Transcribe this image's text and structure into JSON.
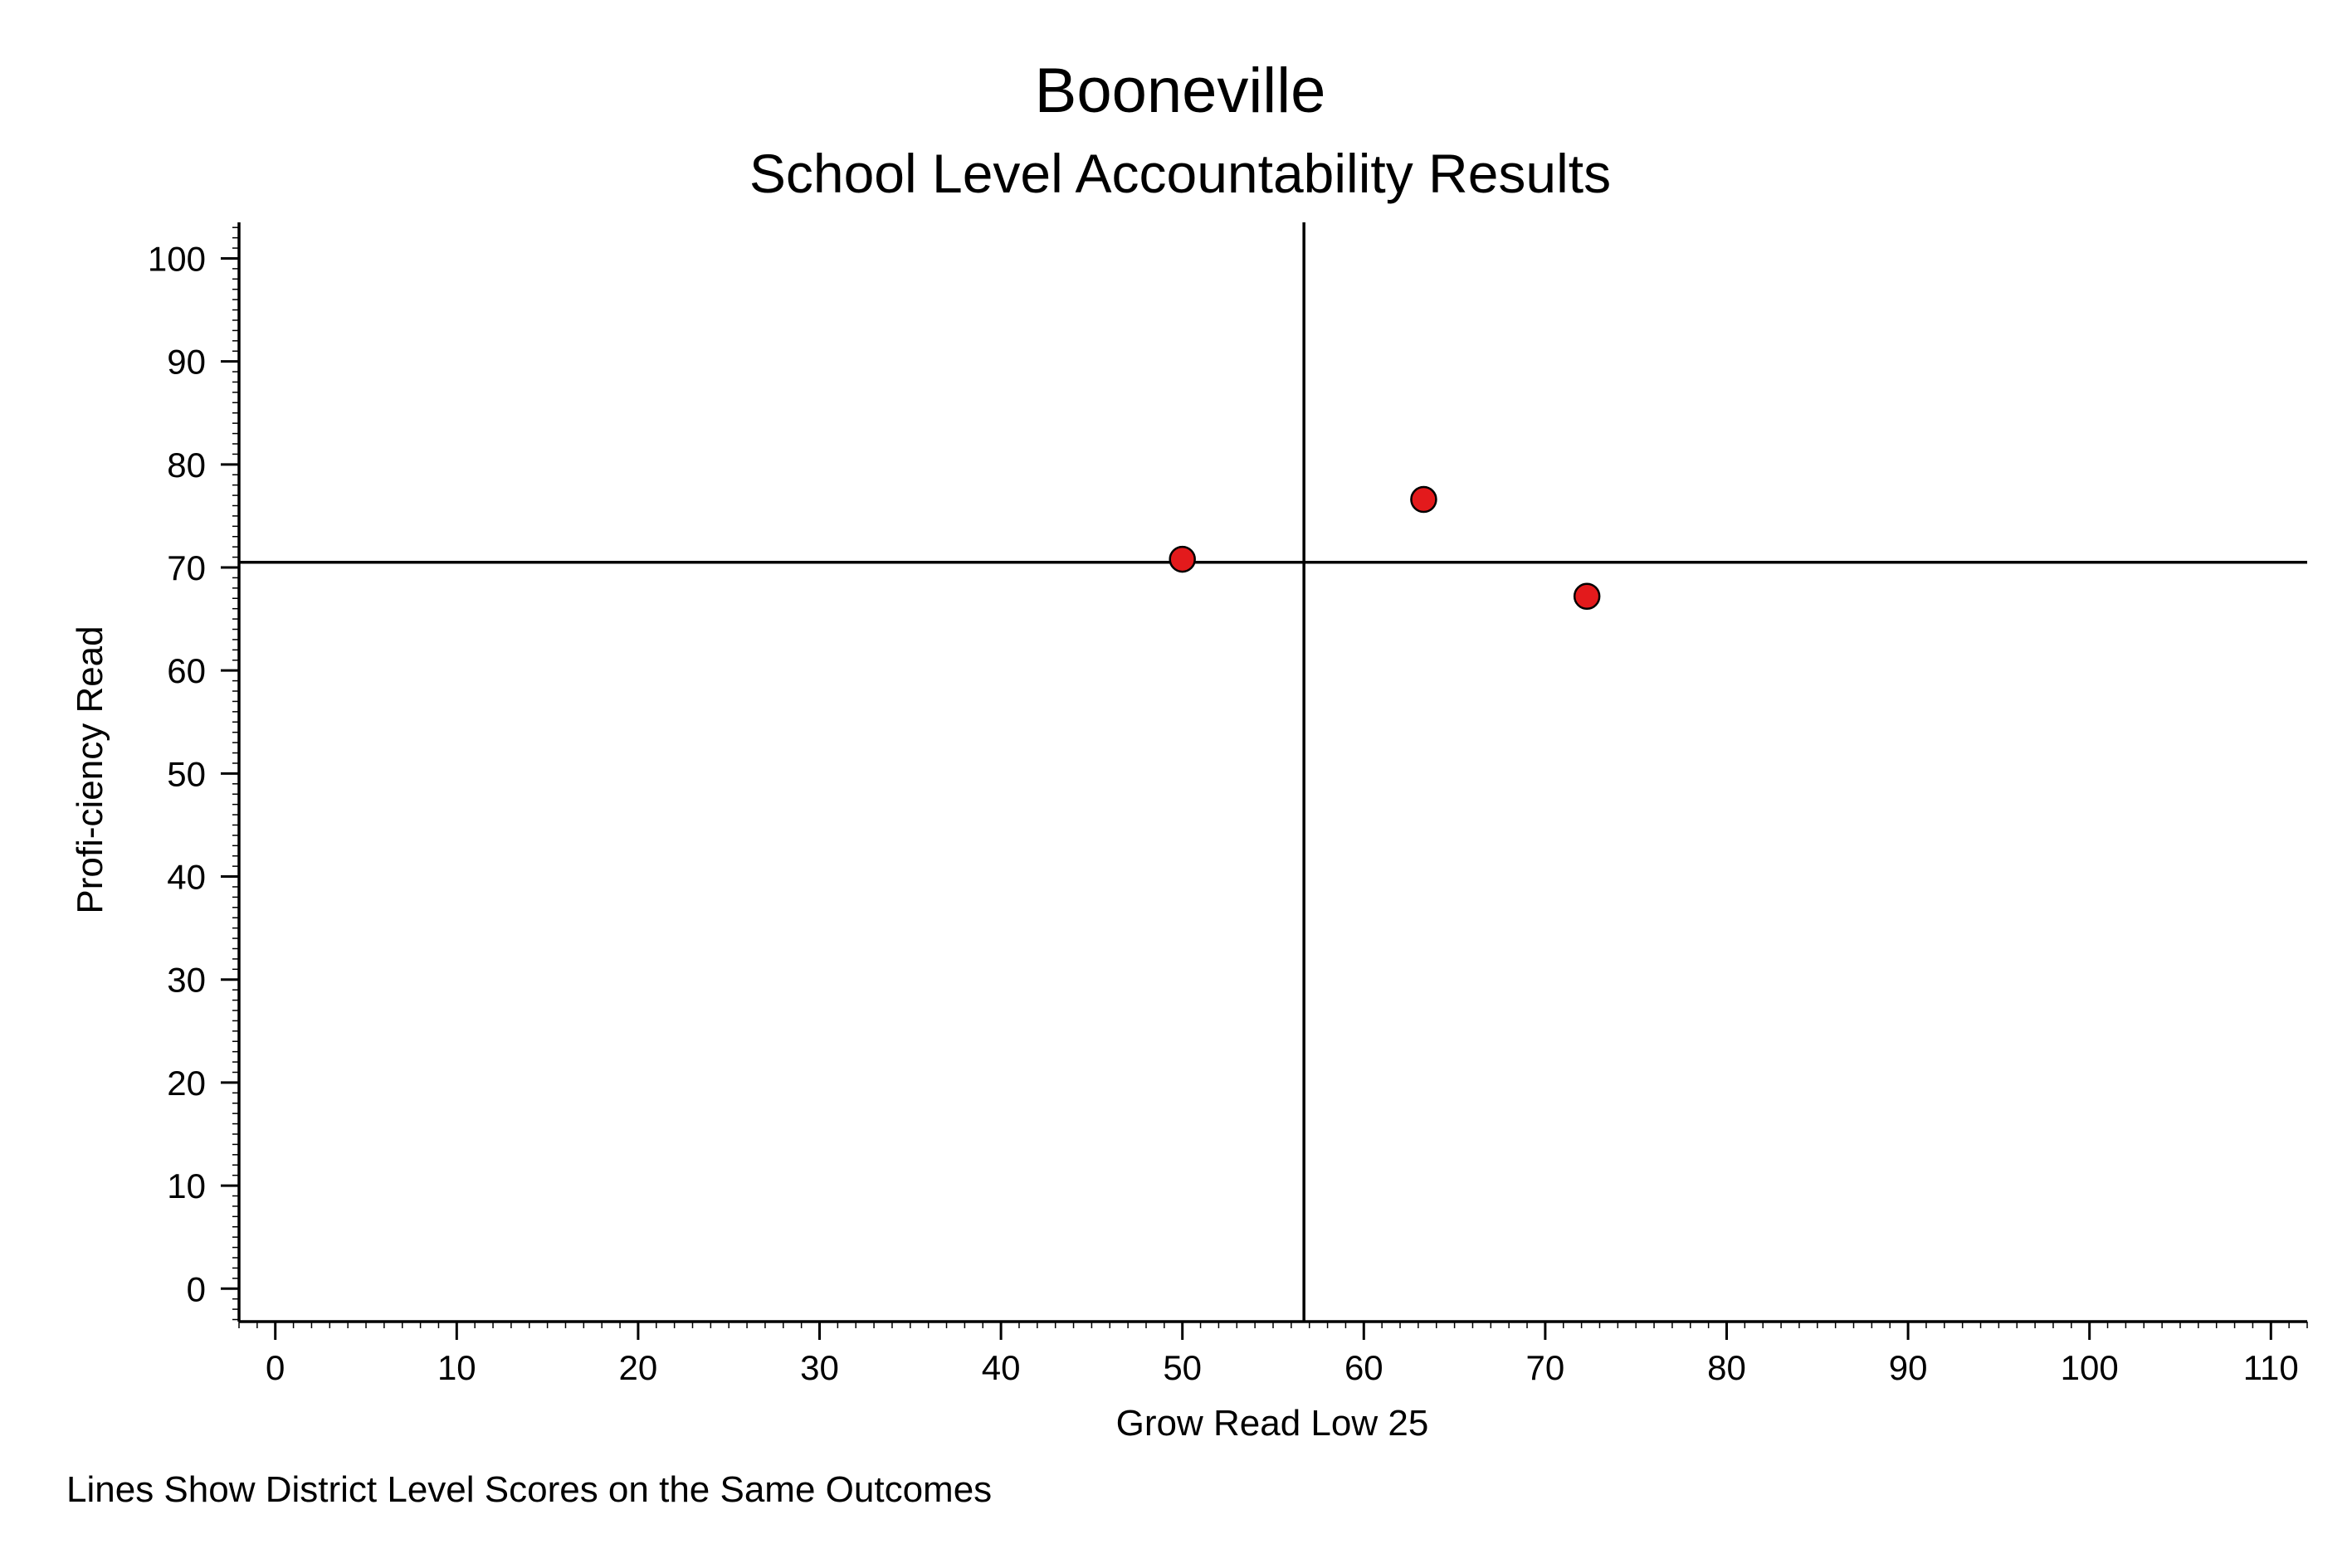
{
  "chart_data": {
    "type": "scatter",
    "title": "Booneville",
    "subtitle": "School Level Accountability Results",
    "xlabel": "Grow Read Low 25",
    "ylabel": "Profi-ciency Read",
    "note": "Lines Show District Level Scores on the Same Outcomes",
    "xlim": [
      -2,
      112
    ],
    "ylim": [
      -3.2,
      103.5
    ],
    "x_ticks": [
      0,
      10,
      20,
      30,
      40,
      50,
      60,
      70,
      80,
      90,
      100,
      110
    ],
    "y_ticks": [
      0,
      10,
      20,
      30,
      40,
      50,
      60,
      70,
      80,
      90,
      100
    ],
    "grid": false,
    "reference_lines": {
      "district_x": 56.7,
      "district_y": 70.5
    },
    "points": [
      {
        "x": 50.0,
        "y": 70.8
      },
      {
        "x": 63.3,
        "y": 76.6
      },
      {
        "x": 72.3,
        "y": 67.2
      }
    ],
    "marker_color": "#e31a1c",
    "marker_edge_color": "#000000"
  }
}
